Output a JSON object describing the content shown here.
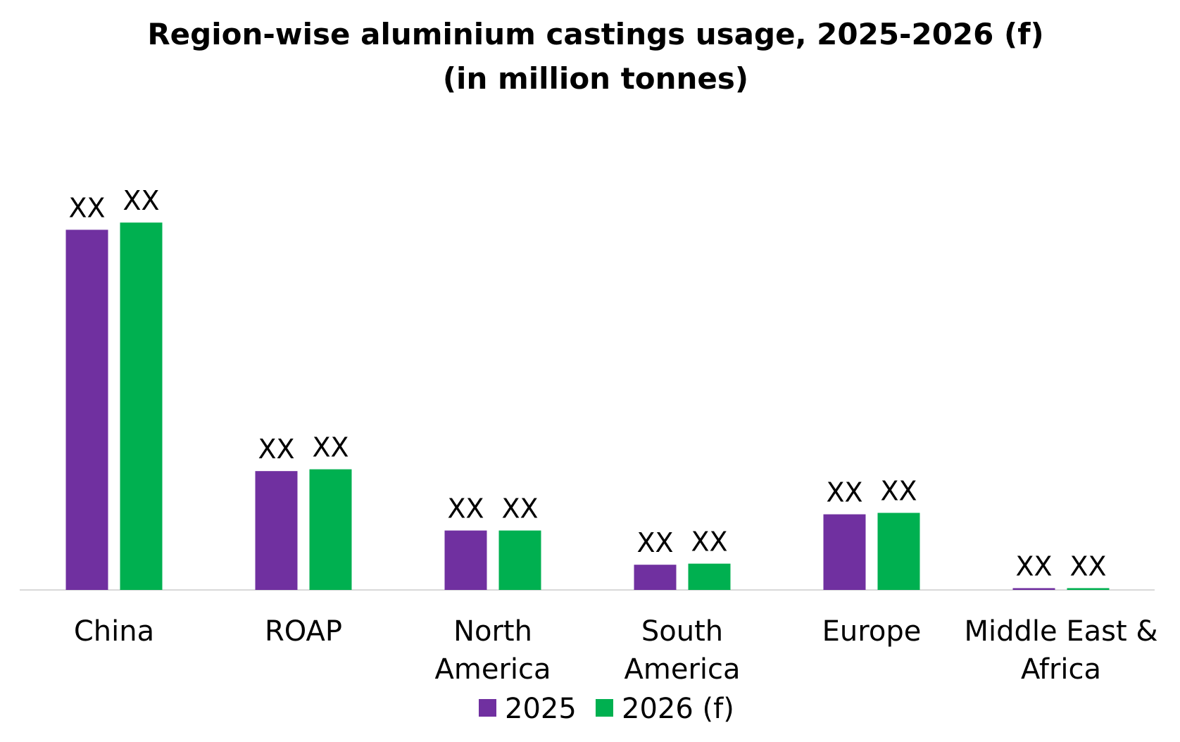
{
  "chart_data": {
    "type": "bar",
    "title": "Region-wise aluminium castings usage, 2025-2026 (f)",
    "subtitle": "(in million tonnes)",
    "categories": [
      [
        "China"
      ],
      [
        "ROAP"
      ],
      [
        "North",
        "America"
      ],
      [
        "South",
        "America"
      ],
      [
        "Europe"
      ],
      [
        "Middle East &",
        "Africa"
      ]
    ],
    "series": [
      {
        "name": "2025",
        "color": "#7030A0",
        "values": [
          100,
          33,
          16.5,
          7,
          21,
          0.5
        ],
        "data_labels": [
          "XX",
          "XX",
          "XX",
          "XX",
          "XX",
          "XX"
        ]
      },
      {
        "name": "2026 (f)",
        "color": "#00B050",
        "values": [
          102,
          33.5,
          16.5,
          7.3,
          21.4,
          0.5
        ],
        "data_labels": [
          "XX",
          "XX",
          "XX",
          "XX",
          "XX",
          "XX"
        ]
      }
    ],
    "ylim": [
      0,
      112
    ],
    "xlabel": "",
    "ylabel": "",
    "grid": false,
    "legend_position": "bottom",
    "axis_color": "#D9D9D9"
  }
}
